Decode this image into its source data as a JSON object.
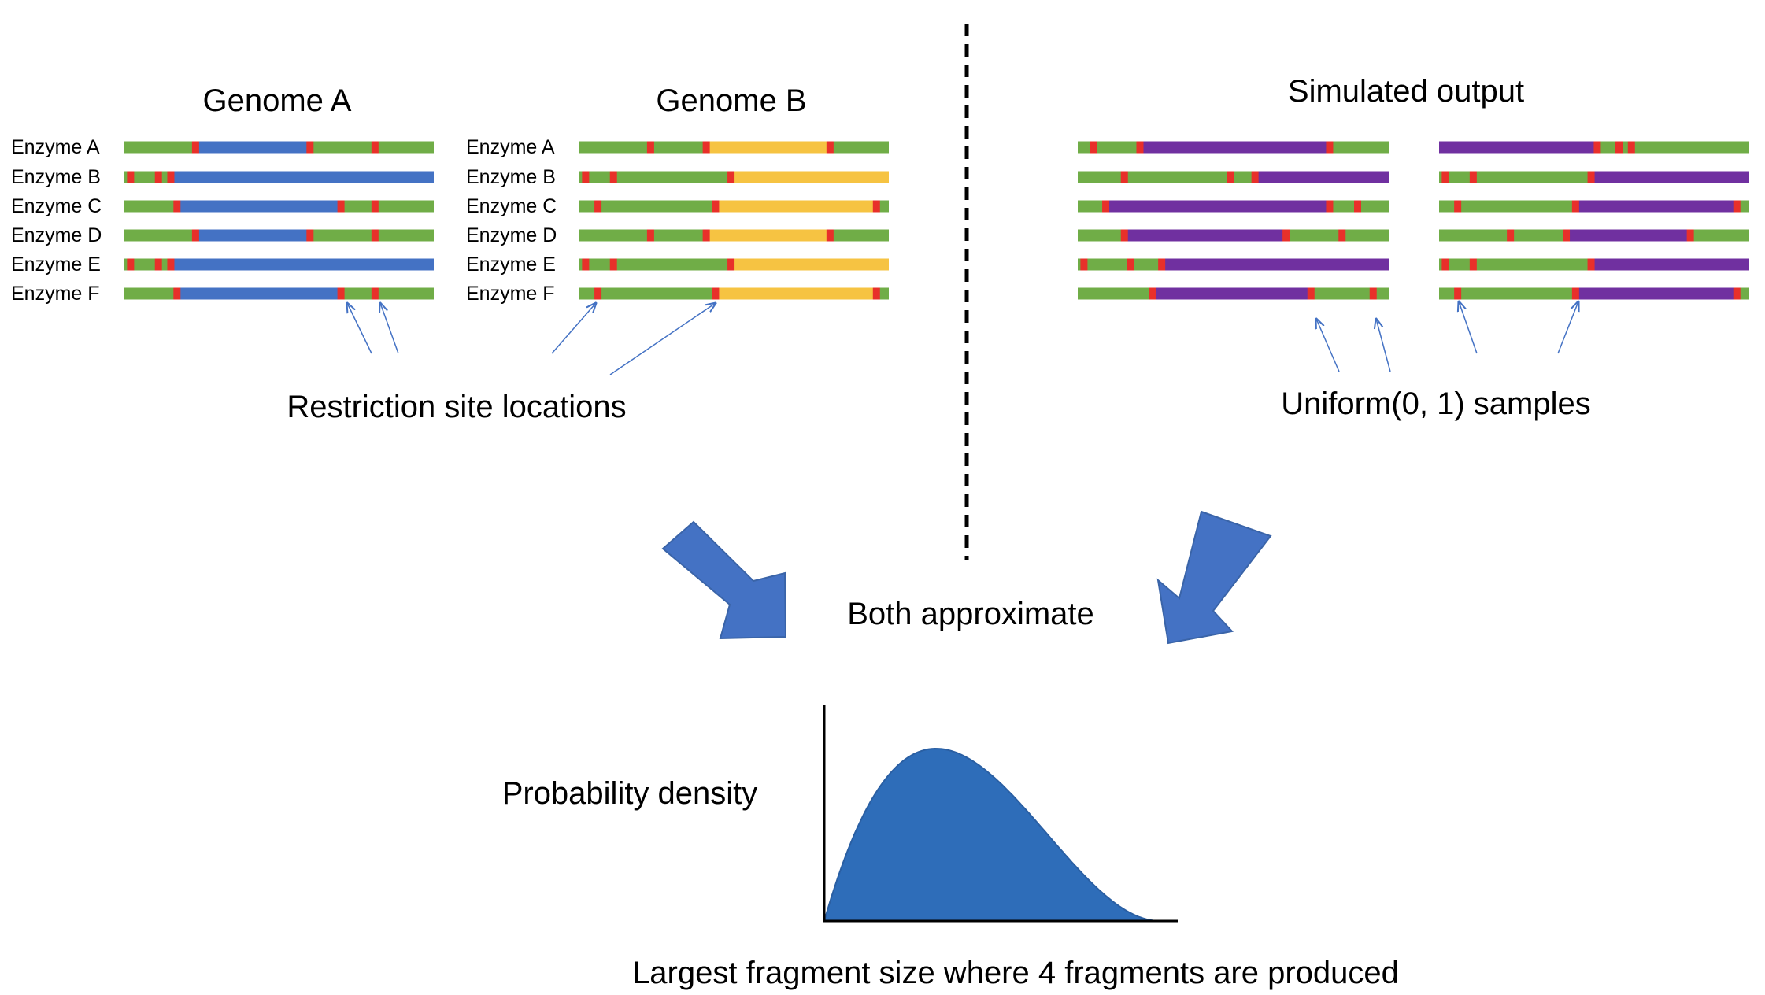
{
  "genome_a": {
    "title": "Genome A",
    "fragment_color": "#4472C4",
    "rows": [
      {
        "label": "Enzyme A",
        "sites": [
          0.23,
          0.6,
          0.81
        ],
        "fragment": [
          0.23,
          0.6
        ]
      },
      {
        "label": "Enzyme B",
        "sites": [
          0.02,
          0.11,
          0.15
        ],
        "fragment": [
          0.15,
          1.0
        ]
      },
      {
        "label": "Enzyme C",
        "sites": [
          0.17,
          0.7,
          0.81
        ],
        "fragment": [
          0.17,
          0.7
        ]
      },
      {
        "label": "Enzyme D",
        "sites": [
          0.23,
          0.6,
          0.81
        ],
        "fragment": [
          0.23,
          0.6
        ]
      },
      {
        "label": "Enzyme E",
        "sites": [
          0.02,
          0.11,
          0.15
        ],
        "fragment": [
          0.15,
          1.0
        ]
      },
      {
        "label": "Enzyme F",
        "sites": [
          0.17,
          0.7,
          0.81
        ],
        "fragment": [
          0.17,
          0.7
        ]
      }
    ]
  },
  "genome_b": {
    "title": "Genome B",
    "fragment_color": "#F6C342",
    "rows": [
      {
        "label": "Enzyme A",
        "sites": [
          0.23,
          0.41,
          0.81
        ],
        "fragment": [
          0.41,
          0.81
        ]
      },
      {
        "label": "Enzyme B",
        "sites": [
          0.02,
          0.11,
          0.49
        ],
        "fragment": [
          0.49,
          1.0
        ]
      },
      {
        "label": "Enzyme C",
        "sites": [
          0.06,
          0.44,
          0.96
        ],
        "fragment": [
          0.44,
          0.96
        ]
      },
      {
        "label": "Enzyme D",
        "sites": [
          0.23,
          0.41,
          0.81
        ],
        "fragment": [
          0.41,
          0.81
        ]
      },
      {
        "label": "Enzyme E",
        "sites": [
          0.02,
          0.11,
          0.49
        ],
        "fragment": [
          0.49,
          1.0
        ]
      },
      {
        "label": "Enzyme F",
        "sites": [
          0.06,
          0.44,
          0.96
        ],
        "fragment": [
          0.44,
          0.96
        ]
      }
    ]
  },
  "simulated": {
    "title": "Simulated output",
    "fragment_color": "#7030A0",
    "left_rows": [
      {
        "sites": [
          0.05,
          0.2,
          0.81
        ],
        "fragment": [
          0.2,
          0.81
        ]
      },
      {
        "sites": [
          0.15,
          0.49,
          0.57
        ],
        "fragment": [
          0.57,
          1.0
        ]
      },
      {
        "sites": [
          0.09,
          0.81,
          0.9
        ],
        "fragment": [
          0.09,
          0.81
        ]
      },
      {
        "sites": [
          0.15,
          0.67,
          0.85
        ],
        "fragment": [
          0.15,
          0.67
        ]
      },
      {
        "sites": [
          0.02,
          0.17,
          0.27
        ],
        "fragment": [
          0.27,
          1.0
        ]
      },
      {
        "sites": [
          0.24,
          0.75,
          0.95
        ],
        "fragment": [
          0.24,
          0.75
        ]
      }
    ],
    "right_rows": [
      {
        "sites": [
          0.51,
          0.58,
          0.62
        ],
        "fragment": [
          0.0,
          0.51
        ]
      },
      {
        "sites": [
          0.02,
          0.11,
          0.49
        ],
        "fragment": [
          0.49,
          1.0
        ]
      },
      {
        "sites": [
          0.06,
          0.44,
          0.96
        ],
        "fragment": [
          0.44,
          0.96
        ]
      },
      {
        "sites": [
          0.23,
          0.41,
          0.81
        ],
        "fragment": [
          0.41,
          0.81
        ]
      },
      {
        "sites": [
          0.02,
          0.11,
          0.49
        ],
        "fragment": [
          0.49,
          1.0
        ]
      },
      {
        "sites": [
          0.06,
          0.44,
          0.96
        ],
        "fragment": [
          0.44,
          0.96
        ]
      }
    ]
  },
  "colors": {
    "backbone": "#70AD47",
    "site": "#E8302A",
    "arrow": "#4472C4",
    "curve": "#2E6DB9"
  },
  "captions": {
    "restriction": "Restriction site locations",
    "uniform": "Uniform(0, 1) samples",
    "both": "Both approximate",
    "ylabel": "Probability density",
    "xlabel": "Largest fragment size where 4 fragments are produced"
  },
  "density_curve": {
    "shape": "beta",
    "alpha": 2,
    "beta": 3
  }
}
